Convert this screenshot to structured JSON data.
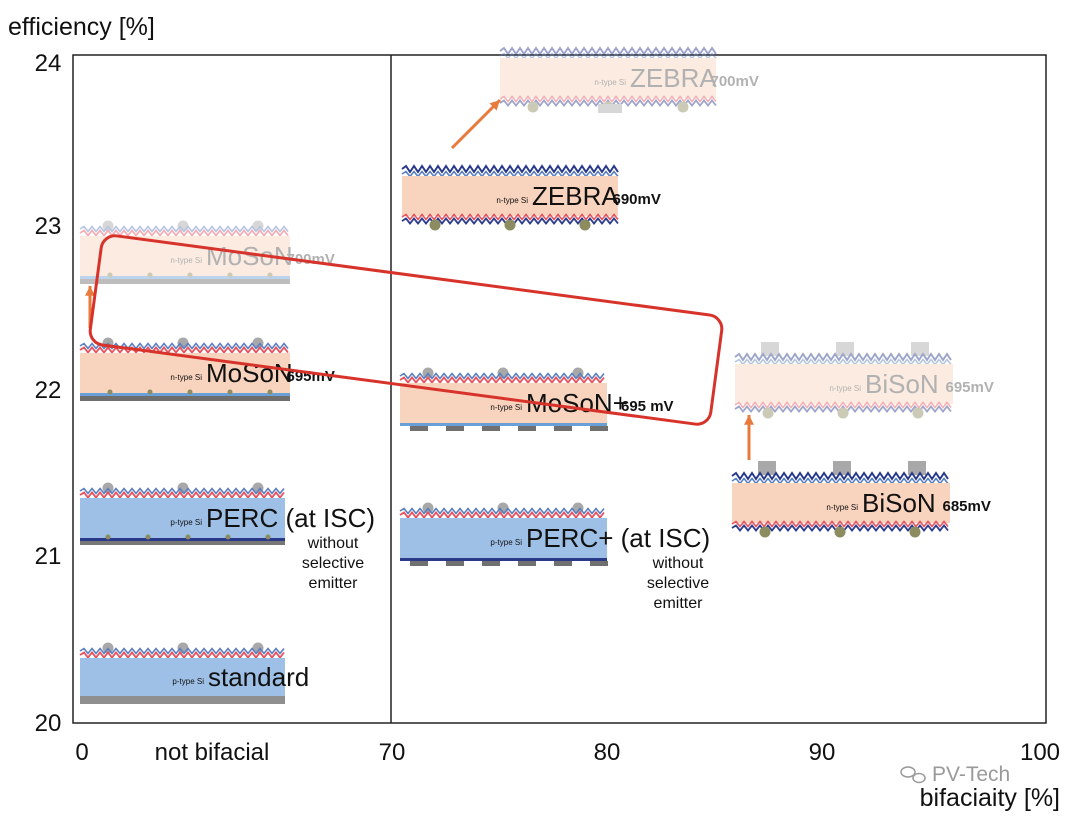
{
  "chart_data": {
    "type": "scatter",
    "ylabel": "efficiency [%]",
    "xlabel": "bifaciaity [%]",
    "ylim": [
      20,
      24
    ],
    "yticks": [
      "20",
      "21",
      "22",
      "23",
      "24"
    ],
    "xticks": [
      "0",
      "not bifacial",
      "70",
      "80",
      "90",
      "100"
    ],
    "grid": false,
    "points": [
      {
        "name": "standard",
        "substrate": "p-type Si",
        "bifaciality": 0,
        "efficiency": 20.4,
        "voc": "",
        "note": "",
        "style": "p-base",
        "projected": false
      },
      {
        "name": "PERC (at ISC)",
        "substrate": "p-type Si",
        "bifaciality": 0,
        "efficiency": 21.3,
        "voc": "",
        "note": "without selective emitter",
        "style": "p-perc",
        "projected": false
      },
      {
        "name": "MoSoN",
        "substrate": "n-type Si",
        "bifaciality": 0,
        "efficiency": 22.15,
        "voc": "695mV",
        "note": "",
        "style": "n-mono",
        "projected": false
      },
      {
        "name": "MoSoN",
        "substrate": "n-type Si",
        "bifaciality": 0,
        "efficiency": 22.8,
        "voc": "700mV",
        "note": "",
        "style": "n-mono",
        "projected": true
      },
      {
        "name": "PERC+ (at ISC)",
        "substrate": "p-type Si",
        "bifaciality": 75,
        "efficiency": 21.15,
        "voc": "",
        "note": "without selective emitter",
        "style": "p-plus",
        "projected": false
      },
      {
        "name": "MoSoN+",
        "substrate": "n-type Si",
        "bifaciality": 75,
        "efficiency": 21.95,
        "voc": "695 mV",
        "note": "",
        "style": "n-plus",
        "projected": false
      },
      {
        "name": "ZEBRA",
        "substrate": "n-type Si",
        "bifaciality": 75,
        "efficiency": 23.25,
        "voc": "690mV",
        "note": "",
        "style": "zebra",
        "projected": false
      },
      {
        "name": "ZEBRA",
        "substrate": "n-type Si",
        "bifaciality": 80,
        "efficiency": 23.9,
        "voc": "700mV",
        "note": "",
        "style": "zebra",
        "projected": true
      },
      {
        "name": "BiSoN",
        "substrate": "n-type Si",
        "bifaciality": 91,
        "efficiency": 21.4,
        "voc": "685mV",
        "note": "",
        "style": "bison",
        "projected": false
      },
      {
        "name": "BiSoN",
        "substrate": "n-type Si",
        "bifaciality": 91,
        "efficiency": 22.05,
        "voc": "695mV",
        "note": "",
        "style": "bison",
        "projected": true
      }
    ],
    "highlight_group": [
      "MoSoN 695mV",
      "MoSoN+ 695 mV"
    ],
    "arrows": [
      {
        "from": "MoSoN 695mV",
        "to": "MoSoN 700mV"
      },
      {
        "from": "ZEBRA 690mV",
        "to": "ZEBRA 700mV"
      },
      {
        "from": "BiSoN 685mV",
        "to": "BiSoN 695mV"
      }
    ]
  },
  "colors": {
    "axis": "#222222",
    "highlight_box": "#d7332a",
    "arrow": "#e87a3c",
    "n_body": "#f8d3bd",
    "p_body": "#9ec0e6",
    "wave_red": "#e8505b",
    "wave_blue": "#5a7fc0",
    "wave_navy": "#2a3a8a",
    "contact_grey": "#a8a8a8",
    "contact_olive": "#8c8c60",
    "watermark": "#9a9a9a"
  },
  "watermark": "PV-Tech"
}
